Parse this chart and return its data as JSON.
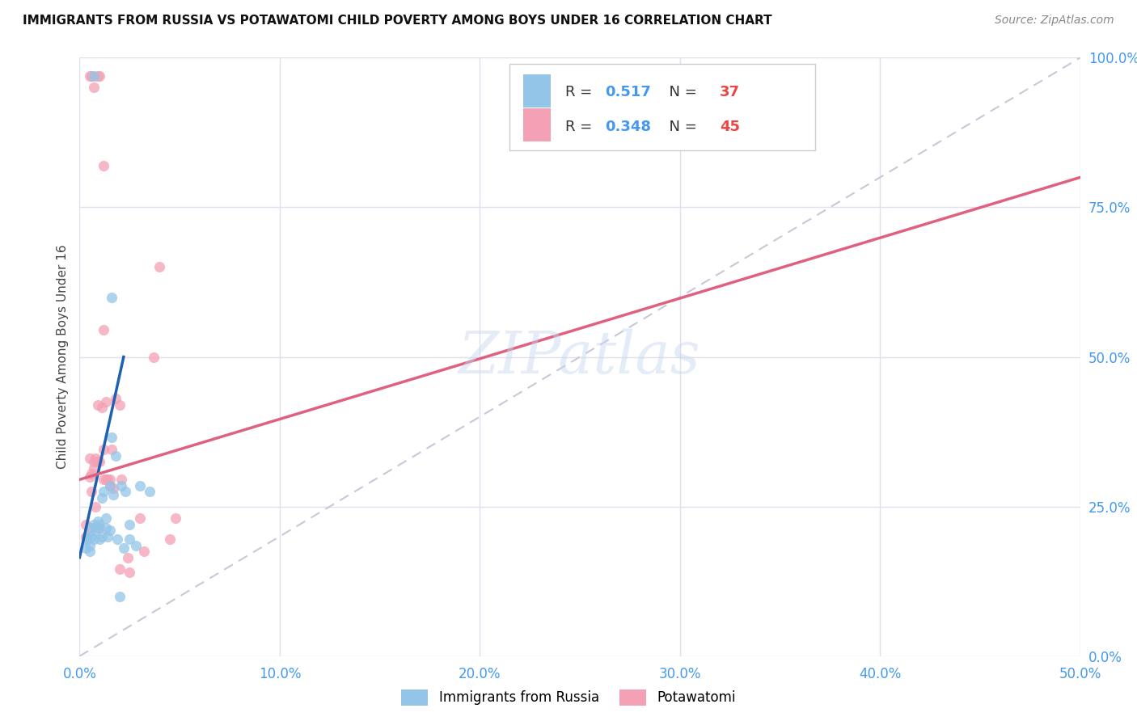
{
  "title": "IMMIGRANTS FROM RUSSIA VS POTAWATOMI CHILD POVERTY AMONG BOYS UNDER 16 CORRELATION CHART",
  "source": "Source: ZipAtlas.com",
  "ylabel": "Child Poverty Among Boys Under 16",
  "xlim": [
    0.0,
    0.5
  ],
  "ylim": [
    0.0,
    1.0
  ],
  "xticks": [
    0.0,
    0.1,
    0.2,
    0.3,
    0.4,
    0.5
  ],
  "xtick_labels": [
    "0.0%",
    "10.0%",
    "20.0%",
    "30.0%",
    "40.0%",
    "50.0%"
  ],
  "yticks": [
    0.0,
    0.25,
    0.5,
    0.75,
    1.0
  ],
  "ytick_labels": [
    "0.0%",
    "25.0%",
    "50.0%",
    "75.0%",
    "100.0%"
  ],
  "blue_scatter": [
    [
      0.003,
      0.18
    ],
    [
      0.004,
      0.2
    ],
    [
      0.004,
      0.195
    ],
    [
      0.005,
      0.175
    ],
    [
      0.005,
      0.185
    ],
    [
      0.006,
      0.2
    ],
    [
      0.006,
      0.215
    ],
    [
      0.007,
      0.22
    ],
    [
      0.007,
      0.195
    ],
    [
      0.008,
      0.21
    ],
    [
      0.009,
      0.215
    ],
    [
      0.009,
      0.225
    ],
    [
      0.01,
      0.22
    ],
    [
      0.01,
      0.195
    ],
    [
      0.011,
      0.265
    ],
    [
      0.011,
      0.2
    ],
    [
      0.012,
      0.275
    ],
    [
      0.013,
      0.23
    ],
    [
      0.013,
      0.215
    ],
    [
      0.014,
      0.2
    ],
    [
      0.015,
      0.285
    ],
    [
      0.015,
      0.21
    ],
    [
      0.016,
      0.365
    ],
    [
      0.017,
      0.27
    ],
    [
      0.018,
      0.335
    ],
    [
      0.019,
      0.195
    ],
    [
      0.02,
      0.1
    ],
    [
      0.021,
      0.285
    ],
    [
      0.022,
      0.18
    ],
    [
      0.023,
      0.275
    ],
    [
      0.025,
      0.22
    ],
    [
      0.025,
      0.195
    ],
    [
      0.028,
      0.185
    ],
    [
      0.03,
      0.285
    ],
    [
      0.035,
      0.275
    ],
    [
      0.016,
      0.6
    ],
    [
      0.007,
      0.97
    ]
  ],
  "pink_scatter": [
    [
      0.003,
      0.2
    ],
    [
      0.003,
      0.22
    ],
    [
      0.004,
      0.195
    ],
    [
      0.005,
      0.215
    ],
    [
      0.005,
      0.3
    ],
    [
      0.005,
      0.33
    ],
    [
      0.006,
      0.275
    ],
    [
      0.006,
      0.305
    ],
    [
      0.007,
      0.315
    ],
    [
      0.007,
      0.325
    ],
    [
      0.008,
      0.25
    ],
    [
      0.008,
      0.33
    ],
    [
      0.009,
      0.325
    ],
    [
      0.009,
      0.42
    ],
    [
      0.01,
      0.215
    ],
    [
      0.01,
      0.325
    ],
    [
      0.011,
      0.415
    ],
    [
      0.012,
      0.295
    ],
    [
      0.012,
      0.345
    ],
    [
      0.012,
      0.545
    ],
    [
      0.013,
      0.295
    ],
    [
      0.013,
      0.425
    ],
    [
      0.014,
      0.295
    ],
    [
      0.015,
      0.285
    ],
    [
      0.015,
      0.295
    ],
    [
      0.016,
      0.345
    ],
    [
      0.017,
      0.28
    ],
    [
      0.018,
      0.43
    ],
    [
      0.02,
      0.145
    ],
    [
      0.021,
      0.295
    ],
    [
      0.024,
      0.165
    ],
    [
      0.025,
      0.14
    ],
    [
      0.03,
      0.23
    ],
    [
      0.032,
      0.175
    ],
    [
      0.045,
      0.195
    ],
    [
      0.04,
      0.65
    ],
    [
      0.005,
      0.97
    ],
    [
      0.006,
      0.97
    ],
    [
      0.007,
      0.95
    ],
    [
      0.009,
      0.97
    ],
    [
      0.01,
      0.97
    ],
    [
      0.012,
      0.82
    ],
    [
      0.02,
      0.42
    ],
    [
      0.037,
      0.5
    ],
    [
      0.048,
      0.23
    ]
  ],
  "blue_line": {
    "x": [
      0.0,
      0.022
    ],
    "y": [
      0.165,
      0.5
    ]
  },
  "pink_line": {
    "x": [
      0.0,
      0.5
    ],
    "y": [
      0.295,
      0.8
    ]
  },
  "diag_line": {
    "x": [
      0.0,
      0.5
    ],
    "y": [
      0.0,
      1.0
    ]
  },
  "watermark_text": "ZIPatlas",
  "blue_color": "#92C5E8",
  "pink_color": "#F4A0B5",
  "blue_line_color": "#2060B0",
  "pink_line_color": "#E06080",
  "diag_color": "#C8C8D8",
  "background": "#FFFFFF",
  "grid_color": "#E0E0EC",
  "legend_R1": "0.517",
  "legend_N1": "37",
  "legend_R2": "0.348",
  "legend_N2": "45",
  "legend_label1": "Immigrants from Russia",
  "legend_label2": "Potawatomi",
  "legend_color1": "#92C5E8",
  "legend_color2": "#F4A0B5",
  "legend_R_color1": "#4499EE",
  "legend_N_color1": "#EE4444",
  "legend_R_color2": "#4499EE",
  "legend_N_color2": "#EE4444"
}
